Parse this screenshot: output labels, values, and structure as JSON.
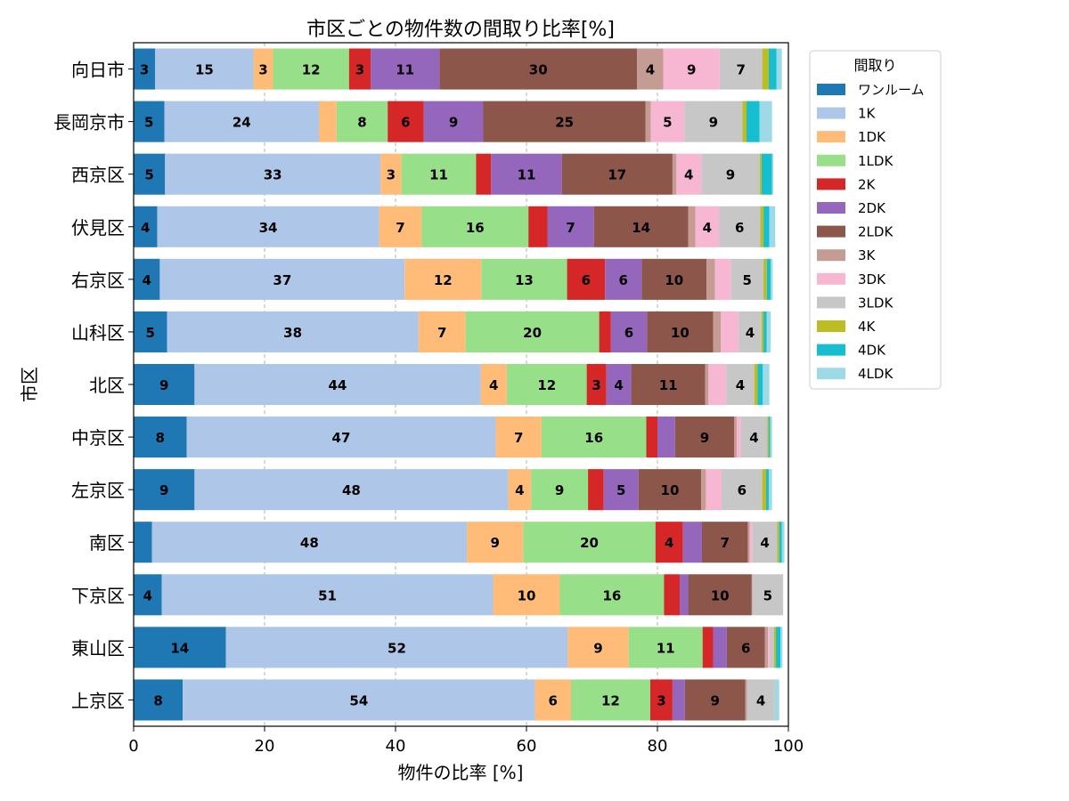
{
  "chart_data": {
    "type": "bar",
    "orientation": "horizontal",
    "stacked": true,
    "title": "市区ごとの物件数の間取り比率[%]",
    "xlabel": "物件の比率 [%]",
    "ylabel": "市区",
    "xlim": [
      0,
      100
    ],
    "xticks": [
      0,
      20,
      40,
      60,
      80,
      100
    ],
    "grid": true,
    "legend": {
      "title": "間取り",
      "placement": "outside-right-top"
    },
    "label_min_value": 3,
    "categories": [
      "向日市",
      "長岡京市",
      "西京区",
      "伏見区",
      "右京区",
      "山科区",
      "北区",
      "中京区",
      "左京区",
      "南区",
      "下京区",
      "東山区",
      "上京区"
    ],
    "series": [
      {
        "name": "ワンルーム",
        "color": "#1f77b4",
        "values": [
          3.3,
          4.7,
          4.8,
          3.6,
          4.0,
          5.1,
          9.3,
          8.1,
          9.3,
          2.8,
          4.3,
          14.1,
          7.5
        ]
      },
      {
        "name": "1K",
        "color": "#aec7e8",
        "values": [
          15.0,
          23.6,
          32.9,
          33.9,
          37.4,
          38.4,
          43.7,
          47.2,
          47.9,
          48.1,
          50.6,
          52.2,
          53.8
        ]
      },
      {
        "name": "1DK",
        "color": "#ffbb78",
        "values": [
          3.0,
          2.7,
          3.2,
          6.5,
          11.7,
          7.2,
          4.0,
          7.0,
          3.5,
          8.6,
          10.2,
          9.3,
          5.5
        ]
      },
      {
        "name": "1LDK",
        "color": "#98df8a",
        "values": [
          11.6,
          7.8,
          11.4,
          16.3,
          13.1,
          20.4,
          12.2,
          16.0,
          8.7,
          20.2,
          15.9,
          11.3,
          12.1
        ]
      },
      {
        "name": "2K",
        "color": "#d62728",
        "values": [
          3.3,
          5.5,
          2.3,
          2.9,
          5.8,
          1.8,
          3.0,
          1.7,
          2.4,
          4.2,
          2.4,
          1.6,
          3.4
        ]
      },
      {
        "name": "2DK",
        "color": "#9467bd",
        "values": [
          10.5,
          9.1,
          10.8,
          7.1,
          5.6,
          5.5,
          3.8,
          2.7,
          5.3,
          2.9,
          1.3,
          2.1,
          1.9
        ]
      },
      {
        "name": "2LDK",
        "color": "#8c564b",
        "values": [
          30.2,
          24.8,
          16.9,
          14.4,
          9.9,
          10.1,
          11.3,
          9.0,
          9.6,
          7.0,
          9.7,
          5.8,
          9.2
        ]
      },
      {
        "name": "3K",
        "color": "#c49c94",
        "values": [
          4.0,
          0.8,
          0.6,
          1.1,
          1.3,
          1.2,
          0.5,
          0.4,
          0.7,
          0.3,
          0.1,
          0.5,
          0.3
        ]
      },
      {
        "name": "3DK",
        "color": "#f7b6d2",
        "values": [
          8.6,
          5.1,
          3.8,
          3.6,
          2.4,
          2.7,
          2.7,
          0.6,
          2.4,
          0.4,
          0.0,
          0.3,
          0.0
        ]
      },
      {
        "name": "3LDK",
        "color": "#c7c7c7",
        "values": [
          6.5,
          8.9,
          8.9,
          6.3,
          5.0,
          3.5,
          4.3,
          4.1,
          6.2,
          3.8,
          4.7,
          0.6,
          4.2
        ]
      },
      {
        "name": "4K",
        "color": "#bcbd22",
        "values": [
          1.0,
          0.6,
          0.3,
          0.5,
          0.5,
          0.3,
          0.5,
          0.2,
          0.6,
          0.3,
          0.0,
          0.3,
          0.0
        ]
      },
      {
        "name": "4DK",
        "color": "#17becf",
        "values": [
          1.2,
          2.0,
          1.6,
          0.9,
          0.6,
          0.5,
          0.8,
          0.2,
          0.4,
          0.4,
          0.0,
          0.7,
          0.0
        ]
      },
      {
        "name": "4LDK",
        "color": "#9edae5",
        "values": [
          0.8,
          1.9,
          0.2,
          0.9,
          0.3,
          0.6,
          1.0,
          0.3,
          0.5,
          0.4,
          0.0,
          0.3,
          0.7
        ]
      }
    ]
  }
}
